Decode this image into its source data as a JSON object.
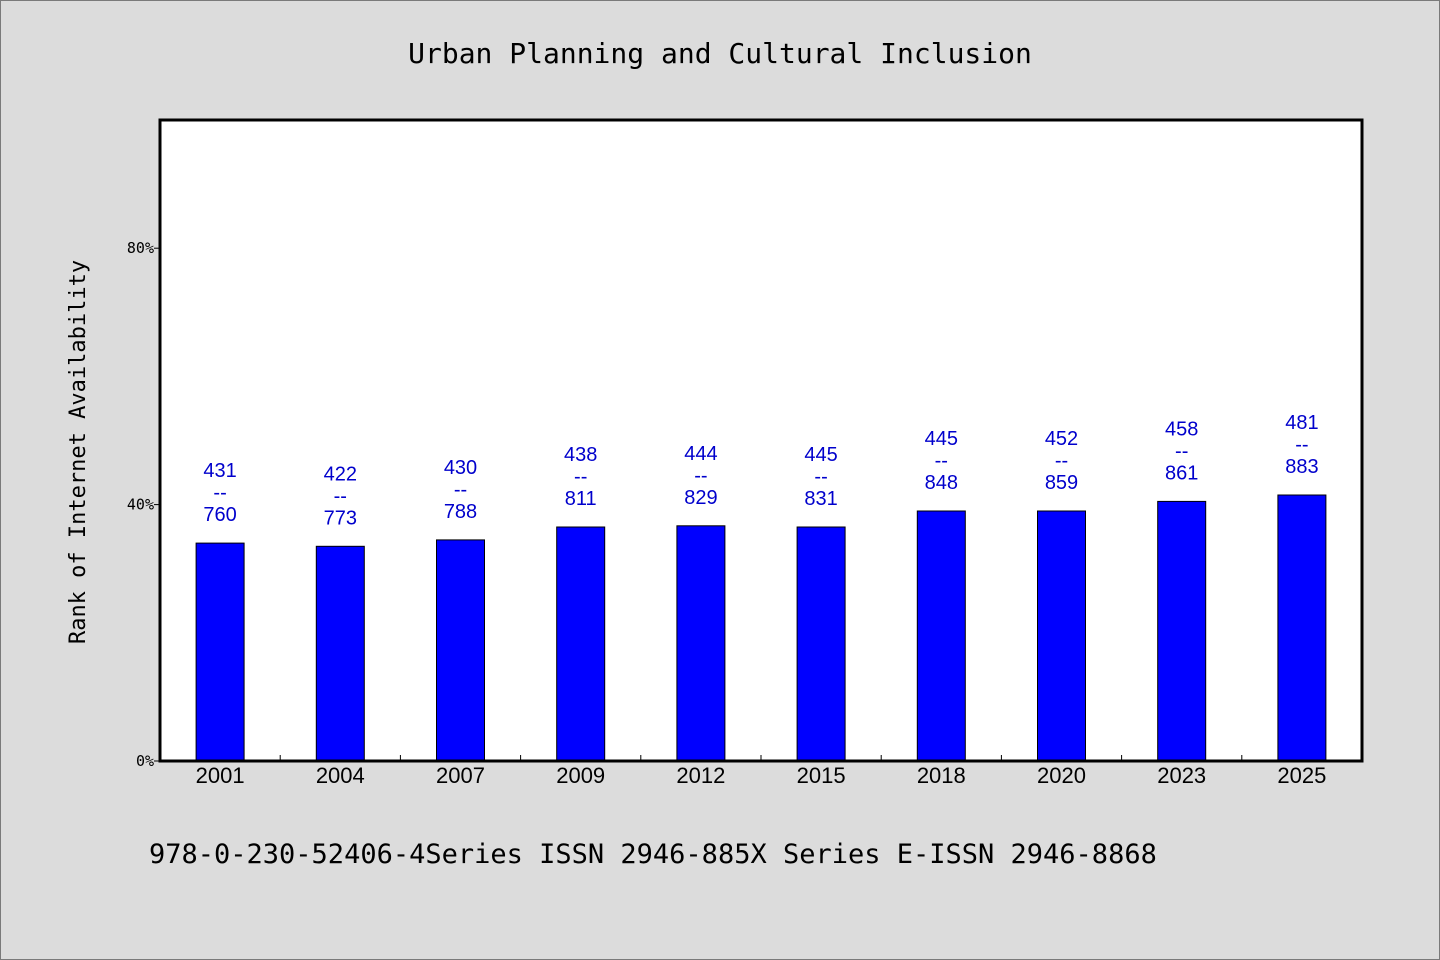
{
  "chart_data": {
    "type": "bar",
    "title": "Urban Planning and Cultural Inclusion",
    "xlabel": "",
    "ylabel": "Rank of Internet Availability",
    "categories": [
      "2001",
      "2004",
      "2007",
      "2009",
      "2012",
      "2015",
      "2018",
      "2020",
      "2023",
      "2025"
    ],
    "values": [
      34,
      33.5,
      34.5,
      36.5,
      36.7,
      36.5,
      39,
      39,
      40.5,
      41.5
    ],
    "labels": [
      "431\n--\n760",
      "422\n--\n773",
      "430\n--\n788",
      "438\n--\n811",
      "444\n--\n829",
      "445\n--\n831",
      "445\n--\n848",
      "452\n--\n859",
      "458\n--\n861",
      "481\n--\n883"
    ],
    "y_unit": "%",
    "yticks": [
      0,
      40,
      80
    ],
    "ytick_labels": [
      "0%",
      "40%",
      "80%"
    ],
    "ylim": [
      0,
      100
    ],
    "grid": false,
    "legend": "none",
    "bar_color": "#0000ff",
    "label_color": "#0000cc",
    "plot_background": "#ffffff",
    "page_background": "#dcdcdc"
  },
  "footer": {
    "text": "978-0-230-52406-4Series ISSN 2946-885X Series E-ISSN 2946-8868"
  }
}
